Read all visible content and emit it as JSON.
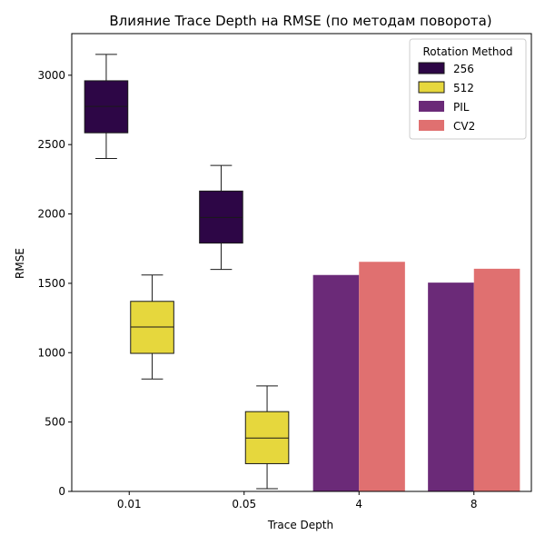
{
  "chart_data": {
    "type": "box+bar",
    "title": "Влияние Trace Depth на RMSE (по методам поворота)",
    "xlabel": "Trace Depth",
    "ylabel": "RMSE",
    "categories": [
      "0.01",
      "0.05",
      "4",
      "8"
    ],
    "ylim": [
      0,
      3300
    ],
    "yticks": [
      0,
      500,
      1000,
      1500,
      2000,
      2500,
      3000
    ],
    "grid": false,
    "legend": {
      "title": "Rotation Method",
      "placement": "top-right"
    },
    "series": [
      {
        "name": "256",
        "kind": "box",
        "color": "#2d0646",
        "boxes": [
          {
            "category": "0.01",
            "min": 2400,
            "q1": 2585,
            "median": 2775,
            "q3": 2960,
            "max": 3150
          },
          {
            "category": "0.05",
            "min": 1600,
            "q1": 1790,
            "median": 1975,
            "q3": 2165,
            "max": 2350
          }
        ]
      },
      {
        "name": "512",
        "kind": "box",
        "color": "#e6d73d",
        "boxes": [
          {
            "category": "0.01",
            "min": 810,
            "q1": 995,
            "median": 1185,
            "q3": 1370,
            "max": 1560
          },
          {
            "category": "0.05",
            "min": 20,
            "q1": 200,
            "median": 385,
            "q3": 575,
            "max": 760
          }
        ]
      },
      {
        "name": "PIL",
        "kind": "bar",
        "color": "#6b2a78",
        "values": [
          {
            "category": "4",
            "value": 1560
          },
          {
            "category": "8",
            "value": 1505
          }
        ]
      },
      {
        "name": "CV2",
        "kind": "bar",
        "color": "#e07070",
        "values": [
          {
            "category": "4",
            "value": 1655
          },
          {
            "category": "8",
            "value": 1605
          }
        ]
      }
    ]
  }
}
